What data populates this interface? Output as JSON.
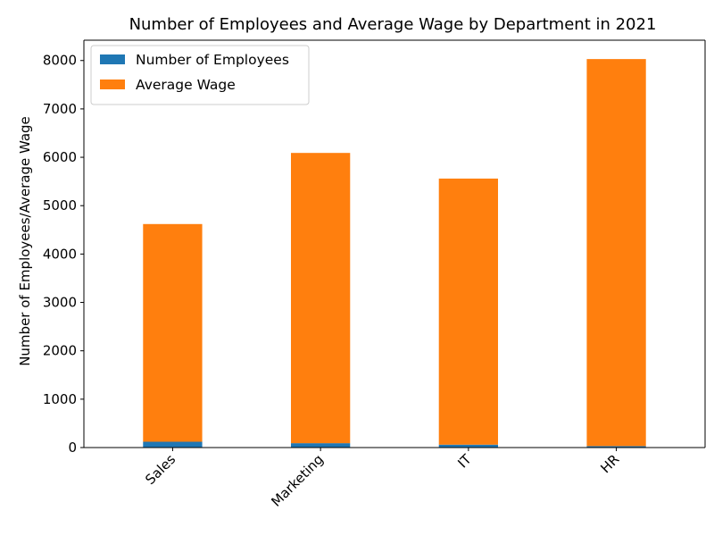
{
  "chart_data": {
    "type": "bar",
    "stacked": true,
    "title": "Number of Employees and Average Wage by Department in 2021",
    "xlabel": "",
    "ylabel": "Number of Employees/Average Wage",
    "categories": [
      "Sales",
      "Marketing",
      "IT",
      "HR"
    ],
    "series": [
      {
        "name": "Number of Employees",
        "values": [
          120,
          90,
          60,
          30
        ],
        "color": "#1f77b4"
      },
      {
        "name": "Average Wage",
        "values": [
          4500,
          6000,
          5500,
          8000
        ],
        "color": "#ff7f0e"
      }
    ],
    "ylim": [
      0,
      8420
    ],
    "yticks": [
      0,
      1000,
      2000,
      3000,
      4000,
      5000,
      6000,
      7000,
      8000
    ],
    "grid": false,
    "legend": "top-left"
  }
}
